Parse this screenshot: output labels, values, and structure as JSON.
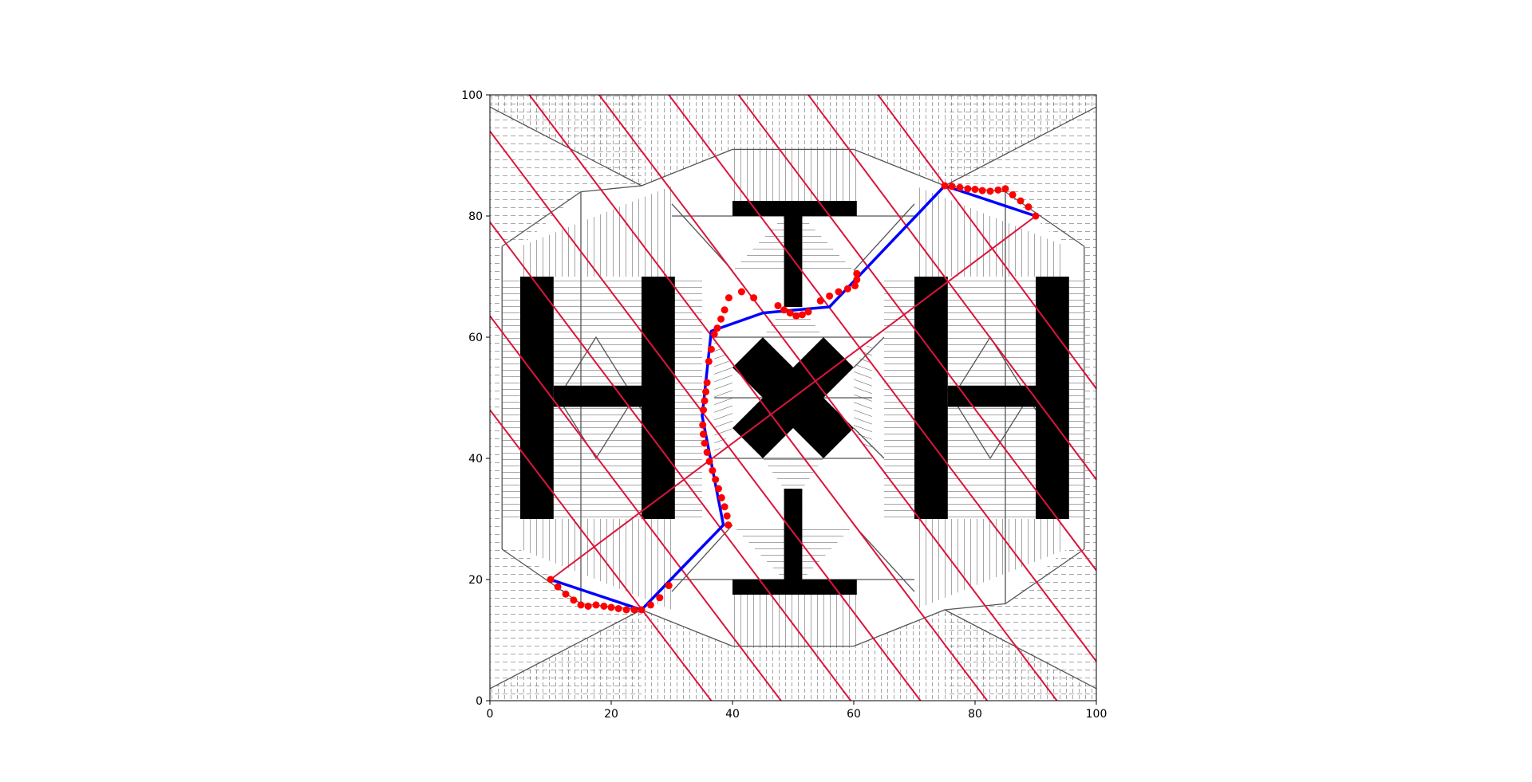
{
  "chart_data": {
    "type": "line",
    "title": "",
    "xlabel": "",
    "ylabel": "",
    "xlim": [
      0,
      100
    ],
    "ylim": [
      0,
      100
    ],
    "xticks": [
      "0",
      "20",
      "40",
      "60",
      "80",
      "100"
    ],
    "yticks": [
      "0",
      "20",
      "40",
      "60",
      "80",
      "100"
    ],
    "grid": false,
    "legend": "none",
    "colors": {
      "obstacle": "#000000",
      "hatch": "#4d4d4d",
      "sweep_line": "#dc143c",
      "path": "#0000ff",
      "waypoint": "#ff0000",
      "roadmap": "#555555"
    },
    "obstacles": [
      {
        "name": "left-h-left-bar",
        "points": [
          [
            5,
            30
          ],
          [
            10.5,
            30
          ],
          [
            10.5,
            70
          ],
          [
            5,
            70
          ]
        ]
      },
      {
        "name": "left-h-right-bar",
        "points": [
          [
            25,
            30
          ],
          [
            30.5,
            30
          ],
          [
            30.5,
            70
          ],
          [
            25,
            70
          ]
        ]
      },
      {
        "name": "left-h-crossbar",
        "points": [
          [
            10.5,
            48.5
          ],
          [
            25,
            48.5
          ],
          [
            25,
            52
          ],
          [
            10.5,
            52
          ]
        ]
      },
      {
        "name": "right-h-left-bar",
        "points": [
          [
            70,
            30
          ],
          [
            75.5,
            30
          ],
          [
            75.5,
            70
          ],
          [
            70,
            70
          ]
        ]
      },
      {
        "name": "right-h-right-bar",
        "points": [
          [
            90,
            30
          ],
          [
            95.5,
            30
          ],
          [
            95.5,
            70
          ],
          [
            90,
            70
          ]
        ]
      },
      {
        "name": "right-h-crossbar",
        "points": [
          [
            75.5,
            48.5
          ],
          [
            90,
            48.5
          ],
          [
            90,
            52
          ],
          [
            75.5,
            52
          ]
        ]
      },
      {
        "name": "top-t-bar",
        "points": [
          [
            40,
            80
          ],
          [
            60.5,
            80
          ],
          [
            60.5,
            82.5
          ],
          [
            40,
            82.5
          ]
        ]
      },
      {
        "name": "top-t-stem",
        "points": [
          [
            48.5,
            65
          ],
          [
            51.5,
            65
          ],
          [
            51.5,
            80
          ],
          [
            48.5,
            80
          ]
        ]
      },
      {
        "name": "bottom-t-bar",
        "points": [
          [
            40,
            17.5
          ],
          [
            60.5,
            17.5
          ],
          [
            60.5,
            20
          ],
          [
            40,
            20
          ]
        ]
      },
      {
        "name": "bottom-t-stem",
        "points": [
          [
            48.5,
            20
          ],
          [
            51.5,
            20
          ],
          [
            51.5,
            35
          ],
          [
            48.5,
            35
          ]
        ]
      },
      {
        "name": "center-x-arm-a",
        "points": [
          [
            40,
            55
          ],
          [
            45,
            60
          ],
          [
            60,
            45
          ],
          [
            55,
            40
          ]
        ]
      },
      {
        "name": "center-x-arm-b",
        "points": [
          [
            45,
            40
          ],
          [
            40,
            45
          ],
          [
            55,
            60
          ],
          [
            60,
            55
          ]
        ]
      }
    ],
    "sweep_lines": [
      {
        "x1": 0,
        "y1": 48,
        "x2": 36.5,
        "y2": 0
      },
      {
        "x1": 0,
        "y1": 63.5,
        "x2": 48,
        "y2": 0
      },
      {
        "x1": 0,
        "y1": 79,
        "x2": 59.5,
        "y2": 0
      },
      {
        "x1": 0,
        "y1": 94,
        "x2": 71,
        "y2": 0
      },
      {
        "x1": 6.5,
        "y1": 100,
        "x2": 82,
        "y2": 0
      },
      {
        "x1": 18,
        "y1": 100,
        "x2": 93.5,
        "y2": 0
      },
      {
        "x1": 29.5,
        "y1": 100,
        "x2": 100,
        "y2": 6.5
      },
      {
        "x1": 41,
        "y1": 100,
        "x2": 100,
        "y2": 21.5
      },
      {
        "x1": 52.5,
        "y1": 100,
        "x2": 100,
        "y2": 36.5
      },
      {
        "x1": 64,
        "y1": 100,
        "x2": 100,
        "y2": 51.5
      },
      {
        "x1": 10,
        "y1": 20,
        "x2": 90,
        "y2": 80
      }
    ],
    "path": {
      "x": [
        10,
        25,
        38.5,
        35,
        36.5,
        45,
        56,
        75,
        90
      ],
      "y": [
        20,
        15,
        29,
        47,
        61,
        64,
        65,
        85,
        80
      ]
    },
    "waypoints": {
      "x": [
        10,
        11.2,
        12.5,
        13.8,
        15,
        16.2,
        17.5,
        18.8,
        20,
        21.2,
        22.5,
        23.8,
        25,
        26.5,
        28,
        29.5,
        39.3,
        39.1,
        38.7,
        38.2,
        37.7,
        37.2,
        36.7,
        36.2,
        35.8,
        35.4,
        35.2,
        35.1,
        35.2,
        35.4,
        35.6,
        35.8,
        36.1,
        36.5,
        37,
        37.5,
        38.1,
        38.7,
        39.4,
        41.5,
        43.5,
        47.5,
        48.5,
        49.5,
        50.5,
        51.5,
        52.5,
        54.5,
        56,
        57.5,
        59,
        60.2,
        60.5,
        60.5,
        75,
        76.2,
        77.5,
        78.8,
        80,
        81.2,
        82.5,
        83.8,
        85,
        86.2,
        87.5,
        88.8,
        90
      ],
      "y": [
        20,
        18.8,
        17.6,
        16.6,
        15.8,
        15.6,
        15.8,
        15.6,
        15.4,
        15.2,
        15,
        15,
        15,
        15.8,
        17,
        19,
        29,
        30.5,
        32,
        33.5,
        35,
        36.5,
        38,
        39.5,
        41,
        42.5,
        44,
        45.5,
        48,
        49.5,
        51,
        52.5,
        56,
        58,
        60.5,
        61.5,
        63,
        64.5,
        66.5,
        67.5,
        66.5,
        65.2,
        64.5,
        64,
        63.5,
        63.7,
        64.2,
        66,
        66.8,
        67.5,
        68,
        68.5,
        69.5,
        70.5,
        85,
        84.9,
        84.7,
        84.5,
        84.4,
        84.2,
        84.1,
        84.3,
        84.5,
        83.5,
        82.5,
        81.5,
        80
      ]
    }
  }
}
